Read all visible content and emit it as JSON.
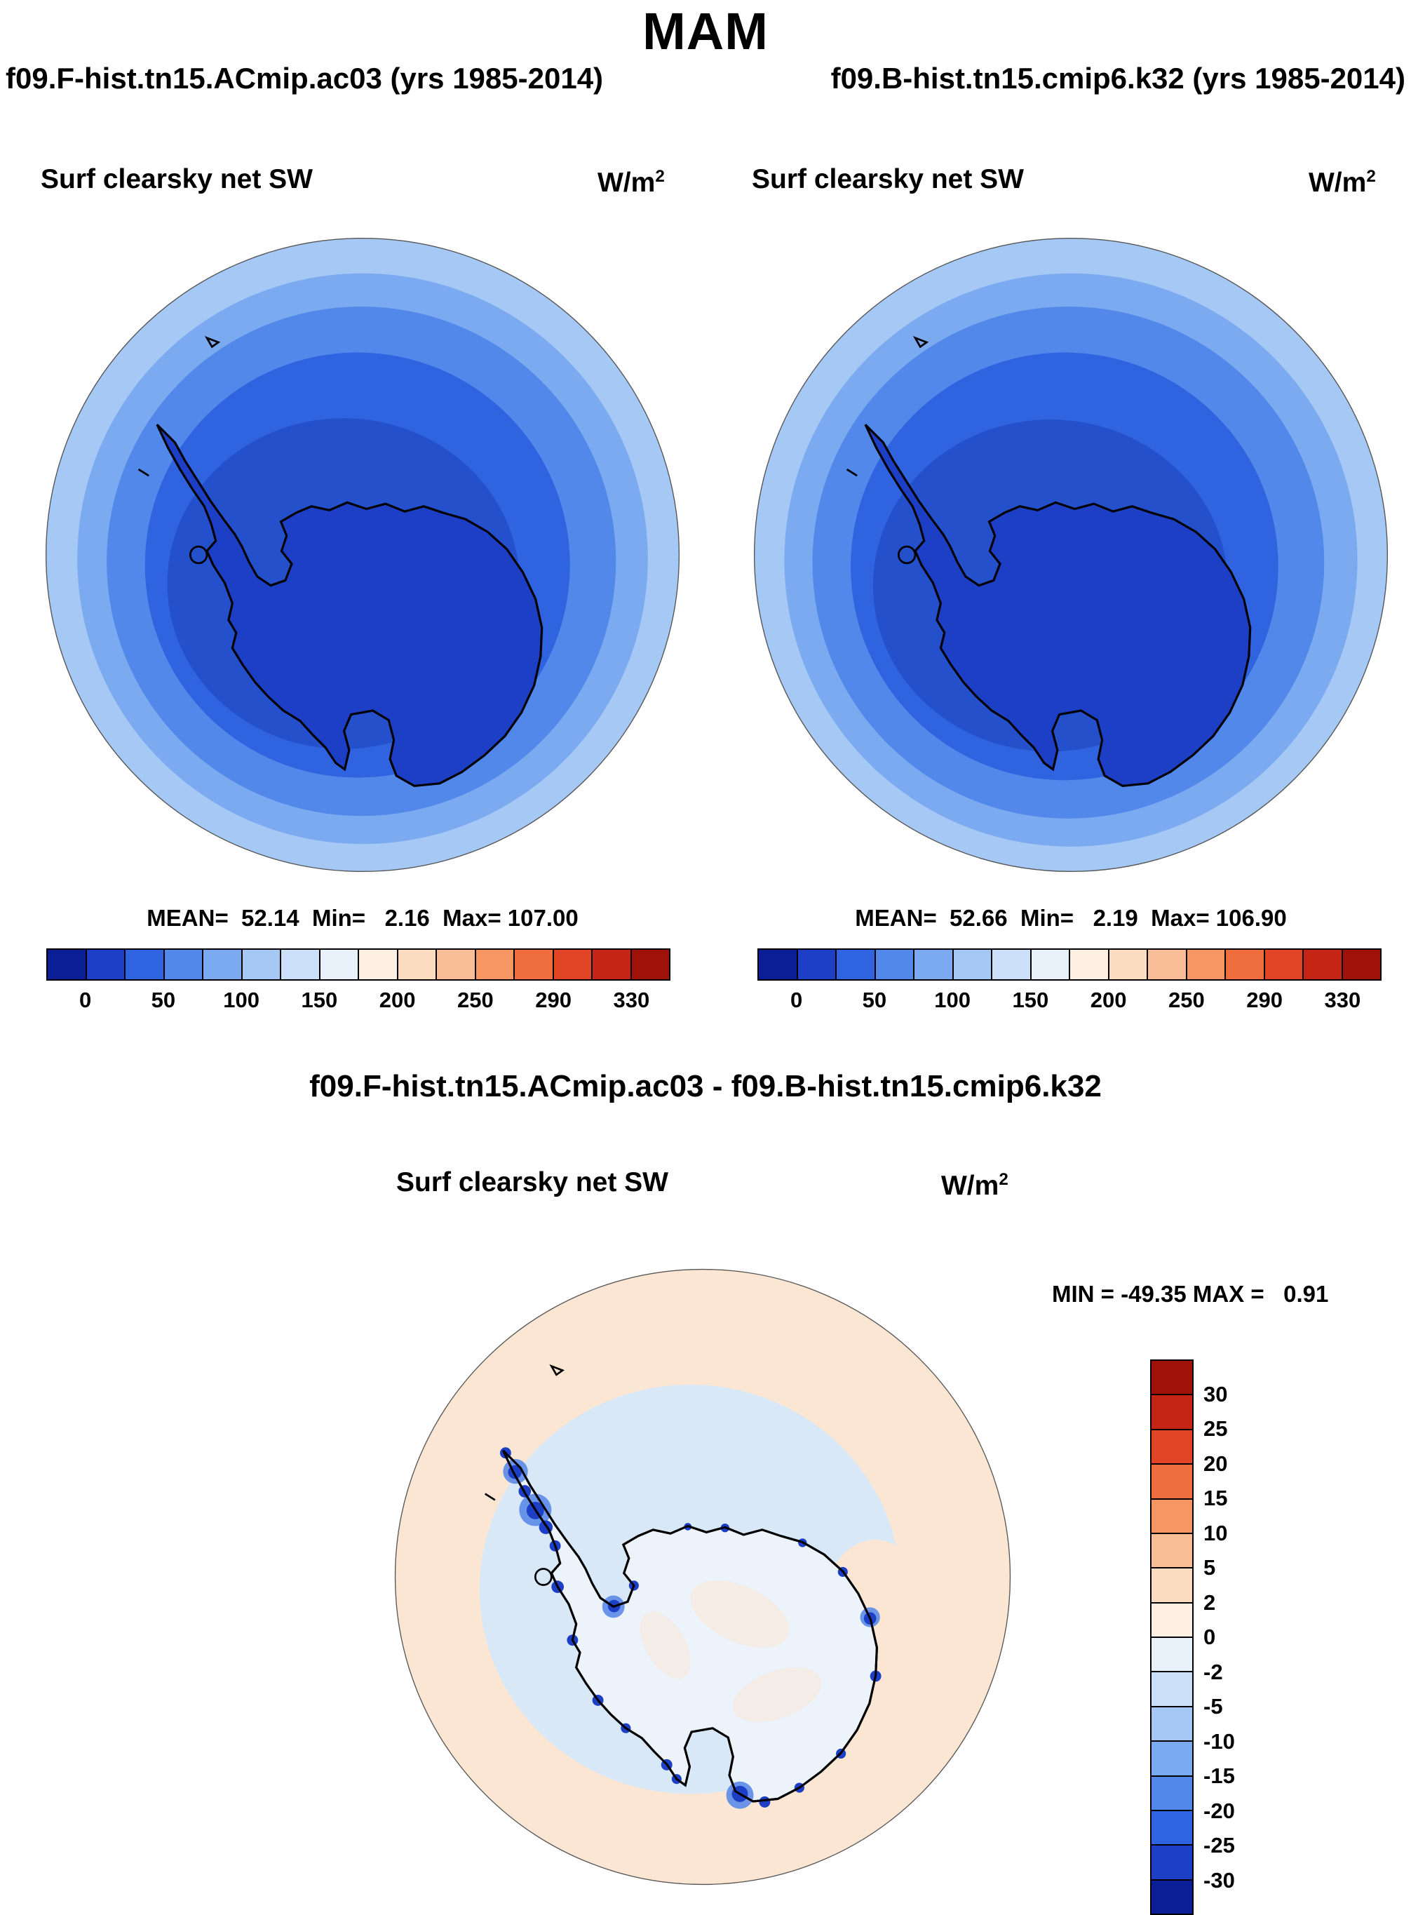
{
  "title": "MAM",
  "header": {
    "left_run": "f09.F-hist.tn15.ACmip.ac03 (yrs 1985-2014)",
    "right_run": "f09.B-hist.tn15.cmip6.k32 (yrs 1985-2014)"
  },
  "panels": {
    "left": {
      "field": "Surf clearsky net SW",
      "units_base": "W/m",
      "units_exp": "2",
      "stats": "MEAN=  52.14  Min=   2.16  Max= 107.00"
    },
    "right": {
      "field": "Surf clearsky net SW",
      "units_base": "W/m",
      "units_exp": "2",
      "stats": "MEAN=  52.66  Min=   2.19  Max= 106.90"
    },
    "diff": {
      "title": "f09.F-hist.tn15.ACmip.ac03 - f09.B-hist.tn15.cmip6.k32",
      "field": "Surf clearsky net SW",
      "units_base": "W/m",
      "units_exp": "2",
      "minmax": "MIN = -49.35 MAX =   0.91"
    }
  },
  "colorbars": {
    "sw": {
      "orientation": "horizontal",
      "colors": [
        "#0a1e96",
        "#1c3fc6",
        "#2f63e0",
        "#5288ea",
        "#7caaf0",
        "#a6c8f4",
        "#cbdff8",
        "#e9f1fb",
        "#fdf0e3",
        "#fbdcc1",
        "#f9be97",
        "#f69663",
        "#f06d3d",
        "#e14526",
        "#c52514",
        "#9f1209"
      ],
      "ticks": [
        "0",
        "50",
        "100",
        "150",
        "200",
        "250",
        "290",
        "330"
      ],
      "tick_start": 1,
      "tick_every": 2
    },
    "diff": {
      "orientation": "vertical",
      "colors": [
        "#9f1209",
        "#c52514",
        "#e14526",
        "#f06d3d",
        "#f69663",
        "#f9be97",
        "#fbdcc1",
        "#fdf0e3",
        "#e9f1fb",
        "#cbdff8",
        "#a6c8f4",
        "#7caaf0",
        "#5288ea",
        "#2f63e0",
        "#1c3fc6",
        "#0a1e96"
      ],
      "ticks": [
        "30",
        "25",
        "20",
        "15",
        "10",
        "5",
        "2",
        "0",
        "-2",
        "-5",
        "-10",
        "-15",
        "-20",
        "-25",
        "-30"
      ],
      "tick_start": 1,
      "tick_every": 1
    }
  },
  "map_colors": {
    "band1": "#a6c8f4",
    "band2": "#7caaf0",
    "band3": "#5288ea",
    "band4": "#2f63e0",
    "band5": "#2450cc",
    "continent": "#1c3fc6",
    "diff_bg": "#fbe6d3",
    "diff_halo": "#d9e8f7",
    "diff_interior": "#ecf3fb",
    "diff_neg_strong": "#1c3fc6",
    "diff_neg_med": "#5b8ae8"
  },
  "chart_data": [
    {
      "type": "heatmap",
      "panel": "top-left",
      "season": "MAM",
      "run": "f09.F-hist.tn15.ACmip.ac03",
      "years": "1985-2014",
      "title": "Surf clearsky net SW",
      "units": "W/m^2",
      "projection": "south polar stereographic (Antarctica)",
      "stats": {
        "mean": 52.14,
        "min": 2.16,
        "max": 107.0
      },
      "levels": [
        0,
        50,
        100,
        150,
        200,
        250,
        290,
        330
      ],
      "legend_position": "bottom",
      "pattern": "lowest values (dark blue, ~0-25 W/m^2) over the Antarctic continent, increasing outward in concentric bands to ~100 W/m^2 (light blue) at the map edge"
    },
    {
      "type": "heatmap",
      "panel": "top-right",
      "season": "MAM",
      "run": "f09.B-hist.tn15.cmip6.k32",
      "years": "1985-2014",
      "title": "Surf clearsky net SW",
      "units": "W/m^2",
      "projection": "south polar stereographic (Antarctica)",
      "stats": {
        "mean": 52.66,
        "min": 2.19,
        "max": 106.9
      },
      "levels": [
        0,
        50,
        100,
        150,
        200,
        250,
        290,
        330
      ],
      "legend_position": "bottom",
      "pattern": "same spatial structure as top-left panel"
    },
    {
      "type": "heatmap",
      "panel": "bottom-difference",
      "season": "MAM",
      "run": "f09.F-hist.tn15.ACmip.ac03 - f09.B-hist.tn15.cmip6.k32",
      "title": "Surf clearsky net SW",
      "units": "W/m^2",
      "projection": "south polar stereographic (Antarctica)",
      "stats": {
        "min": -49.35,
        "max": 0.91
      },
      "levels": [
        30,
        25,
        20,
        15,
        10,
        5,
        2,
        0,
        -2,
        -5,
        -10,
        -15,
        -20,
        -25,
        -30
      ],
      "legend_position": "right",
      "pattern": "weak positive (0 to 2) over open ocean (pale peach), weak negative (0 to -5) over and near the continent (pale blue), strong negative spots (-15 to -50, dark blue) along the coastline and Antarctic Peninsula"
    }
  ]
}
